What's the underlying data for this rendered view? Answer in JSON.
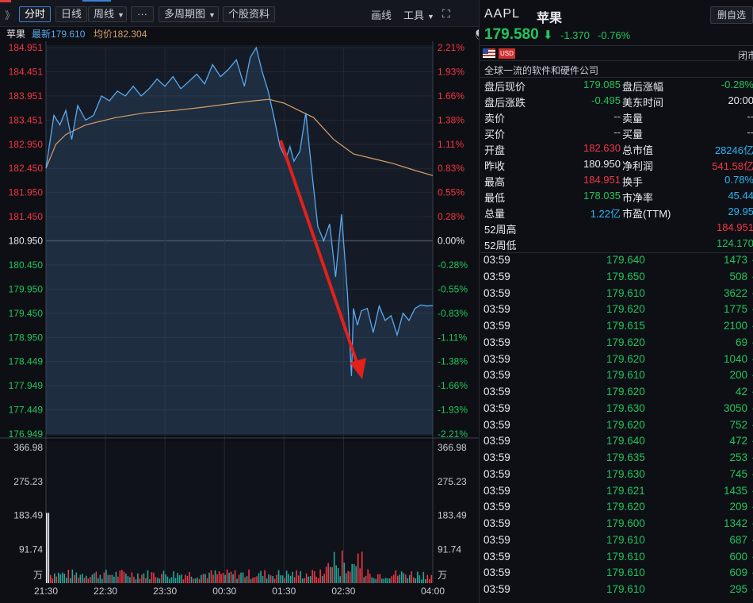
{
  "toolbar": {
    "expand_glyph": "》",
    "tabs": [
      "分时",
      "日线",
      "周线",
      "···",
      "多周期图",
      "个股资料"
    ],
    "right_items": [
      "画线",
      "工具"
    ],
    "fullscreen_glyph": "⛶"
  },
  "info": {
    "name": "苹果",
    "latest_label": "最新179.610",
    "avg_label": "均价182.304"
  },
  "panel": {
    "expand_glyph": "》",
    "code": "AAPL",
    "name": "苹果",
    "del_button": "删自选",
    "price": "179.580",
    "change": "-1.370",
    "change_pct": "-0.76%",
    "usd_badge": "USD",
    "market_status": "闭市",
    "description": "全球一流的软件和硬件公司",
    "stats": [
      {
        "l1": "盘后现价",
        "v1": "179.085",
        "c1": "green",
        "l2": "盘后涨幅",
        "v2": "-0.28%",
        "c2": "green"
      },
      {
        "l1": "盘后涨跌",
        "v1": "-0.495",
        "c1": "green",
        "l2": "美东时间",
        "v2": "20:00",
        "c2": "white"
      },
      {
        "l1": "卖价",
        "v1": "--",
        "c1": "grey",
        "l2": "卖量",
        "v2": "--",
        "c2": "grey"
      },
      {
        "l1": "买价",
        "v1": "--",
        "c1": "grey",
        "l2": "买量",
        "v2": "--",
        "c2": "grey"
      },
      {
        "l1": "开盘",
        "v1": "182.630",
        "c1": "red",
        "l2": "总市值",
        "v2": "28246亿",
        "c2": "cyan"
      },
      {
        "l1": "昨收",
        "v1": "180.950",
        "c1": "white",
        "l2": "净利润",
        "v2": "541.58亿",
        "c2": "red"
      },
      {
        "l1": "最高",
        "v1": "184.951",
        "c1": "red",
        "l2": "换手",
        "v2": "0.78%",
        "c2": "cyan"
      },
      {
        "l1": "最低",
        "v1": "178.035",
        "c1": "green",
        "l2": "市净率",
        "v2": "45.44",
        "c2": "cyan"
      },
      {
        "l1": "总量",
        "v1": "1.22亿",
        "c1": "cyan",
        "l2": "市盈(TTM)",
        "v2": "29.95",
        "c2": "cyan"
      },
      {
        "l1": "52周高",
        "v1": "",
        "c1": "grey",
        "l2": "",
        "v2": "184.951",
        "c2": "red"
      },
      {
        "l1": "52周低",
        "v1": "",
        "c1": "grey",
        "l2": "",
        "v2": "124.170",
        "c2": "green"
      }
    ],
    "trades": [
      {
        "time": "03:59",
        "price": "179.640",
        "vol": "1473"
      },
      {
        "time": "03:59",
        "price": "179.650",
        "vol": "508"
      },
      {
        "time": "03:59",
        "price": "179.610",
        "vol": "3622"
      },
      {
        "time": "03:59",
        "price": "179.620",
        "vol": "1775"
      },
      {
        "time": "03:59",
        "price": "179.615",
        "vol": "2100"
      },
      {
        "time": "03:59",
        "price": "179.620",
        "vol": "69"
      },
      {
        "time": "03:59",
        "price": "179.620",
        "vol": "1040"
      },
      {
        "time": "03:59",
        "price": "179.610",
        "vol": "200"
      },
      {
        "time": "03:59",
        "price": "179.620",
        "vol": "42"
      },
      {
        "time": "03:59",
        "price": "179.630",
        "vol": "3050"
      },
      {
        "time": "03:59",
        "price": "179.620",
        "vol": "752"
      },
      {
        "time": "03:59",
        "price": "179.640",
        "vol": "472"
      },
      {
        "time": "03:59",
        "price": "179.635",
        "vol": "253"
      },
      {
        "time": "03:59",
        "price": "179.630",
        "vol": "745"
      },
      {
        "time": "03:59",
        "price": "179.621",
        "vol": "1435"
      },
      {
        "time": "03:59",
        "price": "179.620",
        "vol": "209"
      },
      {
        "time": "03:59",
        "price": "179.600",
        "vol": "1342"
      },
      {
        "time": "03:59",
        "price": "179.610",
        "vol": "687"
      },
      {
        "time": "03:59",
        "price": "179.610",
        "vol": "600"
      },
      {
        "time": "03:59",
        "price": "179.610",
        "vol": "609"
      },
      {
        "time": "03:59",
        "price": "179.610",
        "vol": "295"
      }
    ]
  },
  "colors": {
    "up": "#f23645",
    "down": "#21c55d",
    "price_line": "#5aa9f0",
    "avg_line": "#d9a066",
    "arrow": "#e3201b",
    "grid": "#242832"
  },
  "chart_data": {
    "type": "line",
    "title": "",
    "prev_close": 180.95,
    "ylim": [
      176.949,
      184.951
    ],
    "y_ticks": [
      "184.951",
      "184.451",
      "183.951",
      "183.451",
      "182.950",
      "182.450",
      "181.950",
      "181.450",
      "180.950",
      "180.450",
      "179.950",
      "179.450",
      "178.950",
      "178.449",
      "177.949",
      "177.449",
      "176.949"
    ],
    "pct_ticks": [
      "2.21%",
      "1.93%",
      "1.66%",
      "1.38%",
      "1.11%",
      "0.83%",
      "0.55%",
      "0.28%",
      "0.00%",
      "-0.28%",
      "-0.55%",
      "-0.83%",
      "-1.11%",
      "-1.38%",
      "-1.66%",
      "-1.93%",
      "-2.21%"
    ],
    "x_ticks": [
      "21:30",
      "22:30",
      "23:30",
      "00:30",
      "01:30",
      "02:30",
      "04:00"
    ],
    "x_range_minutes": 390,
    "series": [
      {
        "name": "最新",
        "x": [
          0,
          8,
          14,
          20,
          26,
          32,
          40,
          48,
          56,
          64,
          72,
          80,
          88,
          96,
          104,
          112,
          120,
          128,
          136,
          144,
          152,
          160,
          168,
          176,
          184,
          192,
          200,
          206,
          212,
          218,
          224,
          230,
          236,
          242,
          246,
          250,
          256,
          262,
          268,
          274,
          280,
          286,
          292,
          298,
          304,
          308,
          310,
          314,
          318,
          324,
          330,
          336,
          342,
          348,
          354,
          360,
          366,
          372,
          378,
          384,
          390
        ],
        "values": [
          182.45,
          183.55,
          183.35,
          183.65,
          183.05,
          183.75,
          183.45,
          183.55,
          183.95,
          183.85,
          184.05,
          183.95,
          184.15,
          183.95,
          184.1,
          184.3,
          184.15,
          184.35,
          184.1,
          184.25,
          184.4,
          184.2,
          184.6,
          184.35,
          184.5,
          184.7,
          184.15,
          184.75,
          184.95,
          184.45,
          184.05,
          183.5,
          182.9,
          182.65,
          182.9,
          182.6,
          182.8,
          183.6,
          182.4,
          181.25,
          180.95,
          181.3,
          180.2,
          181.5,
          179.85,
          178.15,
          179.55,
          179.2,
          179.5,
          179.55,
          179.05,
          179.6,
          179.3,
          179.4,
          179.0,
          179.45,
          179.3,
          179.55,
          179.62,
          179.6,
          179.61
        ]
      },
      {
        "name": "均价",
        "x": [
          0,
          10,
          20,
          40,
          70,
          100,
          130,
          160,
          190,
          210,
          225,
          240,
          255,
          270,
          290,
          310,
          330,
          350,
          370,
          390
        ],
        "values": [
          182.45,
          182.95,
          183.15,
          183.35,
          183.5,
          183.6,
          183.65,
          183.72,
          183.8,
          183.85,
          183.88,
          183.8,
          183.65,
          183.5,
          183.05,
          182.75,
          182.65,
          182.55,
          182.42,
          182.3
        ]
      }
    ],
    "volume": {
      "y_ticks": [
        "366.98",
        "275.23",
        "183.49",
        "91.74"
      ],
      "unit": "万",
      "ylim": [
        0,
        366.98
      ]
    },
    "annotation": "red arrow pointing down from about 01:30 to 02:45"
  }
}
